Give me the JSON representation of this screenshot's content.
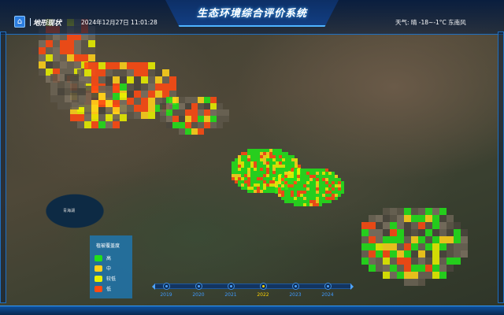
{
  "header": {
    "title": "生态环境综合评价系统",
    "nav_label": "地形现状",
    "datetime": "2024年12月27日 11:01:28",
    "weather": "天气: 晴 -18~-1°C 东南风",
    "home_icon": "home-icon"
  },
  "map": {
    "lake_label": "青海湖"
  },
  "legend": {
    "title": "植被覆盖度",
    "items": [
      {
        "label": "高",
        "color": "#22e01a"
      },
      {
        "label": "中",
        "color": "#ffd21a"
      },
      {
        "label": "较低",
        "color": "#e8f000"
      },
      {
        "label": "低",
        "color": "#ff4a12"
      }
    ]
  },
  "timeline": {
    "years": [
      "2019",
      "2020",
      "2021",
      "2022",
      "2023",
      "2024"
    ],
    "active": "2022"
  }
}
